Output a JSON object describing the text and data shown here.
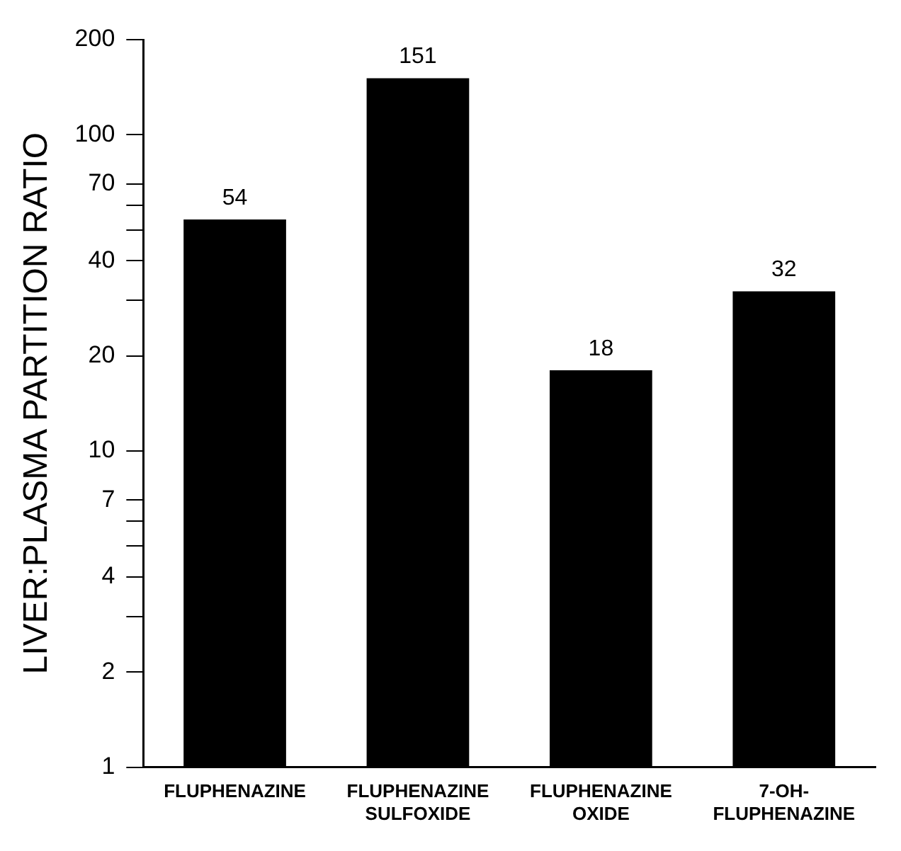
{
  "chart_data": {
    "type": "bar",
    "ylabel": "LIVER:PLASMA PARTITION RATIO",
    "categories": [
      "FLUPHENAZINE",
      "FLUPHENAZINE\nSULFOXIDE",
      "FLUPHENAZINE\nOXIDE",
      "7-OH-\nFLUPHENAZINE"
    ],
    "values": [
      54,
      151,
      18,
      32
    ],
    "color": "#000000",
    "log": true,
    "ylim": [
      1,
      200
    ],
    "yticks": [
      1,
      2,
      {
        "value": 3,
        "label": null
      },
      4,
      {
        "value": 5,
        "label": null
      },
      {
        "value": 6,
        "label": null
      },
      7,
      10,
      20,
      {
        "value": 30,
        "label": null
      },
      40,
      {
        "value": 50,
        "label": null
      },
      {
        "value": 60,
        "label": null
      },
      70,
      100,
      200
    ],
    "data_labels": true,
    "grid": false,
    "legend": false
  }
}
